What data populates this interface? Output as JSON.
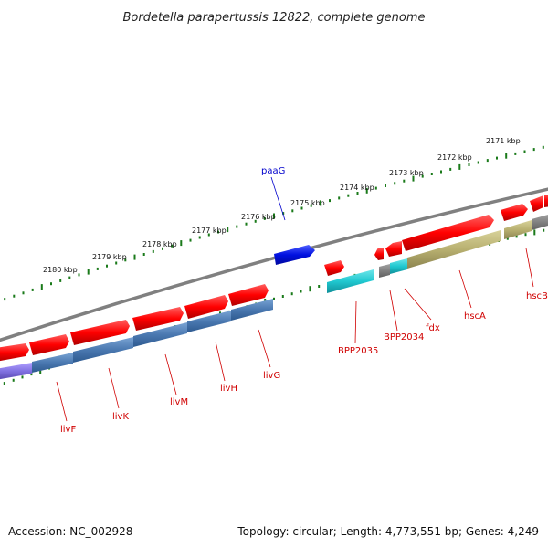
{
  "title": "Bordetella parapertussis 12822, complete genome",
  "footer": {
    "accession": "Accession: NC_002928",
    "topology": "Topology: circular; Length: 4,773,551 bp; Genes: 4,249"
  },
  "colors": {
    "backbone": "#808080",
    "forward_gene": "#ff0000",
    "reverse_gene": "#4a78b0",
    "cyan_gene": "#20c8d0",
    "olive_gene": "#b8b070",
    "blue_gene": "#0010e0",
    "ticks": "#1a7a1a",
    "label_red": "#d00000",
    "label_blue": "#0000cc"
  },
  "ticks": [
    {
      "label": "2171 kbp",
      "kbp": 2171
    },
    {
      "label": "2172 kbp",
      "kbp": 2172
    },
    {
      "label": "2173 kbp",
      "kbp": 2173
    },
    {
      "label": "2174 kbp",
      "kbp": 2174
    },
    {
      "label": "2175 kbp",
      "kbp": 2175
    },
    {
      "label": "2176 kbp",
      "kbp": 2176
    },
    {
      "label": "2177 kbp",
      "kbp": 2177
    },
    {
      "label": "2178 kbp",
      "kbp": 2178
    },
    {
      "label": "2179 kbp",
      "kbp": 2179
    },
    {
      "label": "2180 kbp",
      "kbp": 2180
    }
  ],
  "genes": [
    {
      "name": "hscB",
      "label": "hscB"
    },
    {
      "name": "hscA",
      "label": "hscA"
    },
    {
      "name": "fdx",
      "label": "fdx"
    },
    {
      "name": "BPP2034",
      "label": "BPP2034"
    },
    {
      "name": "BPP2035",
      "label": "BPP2035"
    },
    {
      "name": "paaG",
      "label": "paaG"
    },
    {
      "name": "livG",
      "label": "livG"
    },
    {
      "name": "livH",
      "label": "livH"
    },
    {
      "name": "livM",
      "label": "livM"
    },
    {
      "name": "livK",
      "label": "livK"
    },
    {
      "name": "livF",
      "label": "livF"
    }
  ]
}
